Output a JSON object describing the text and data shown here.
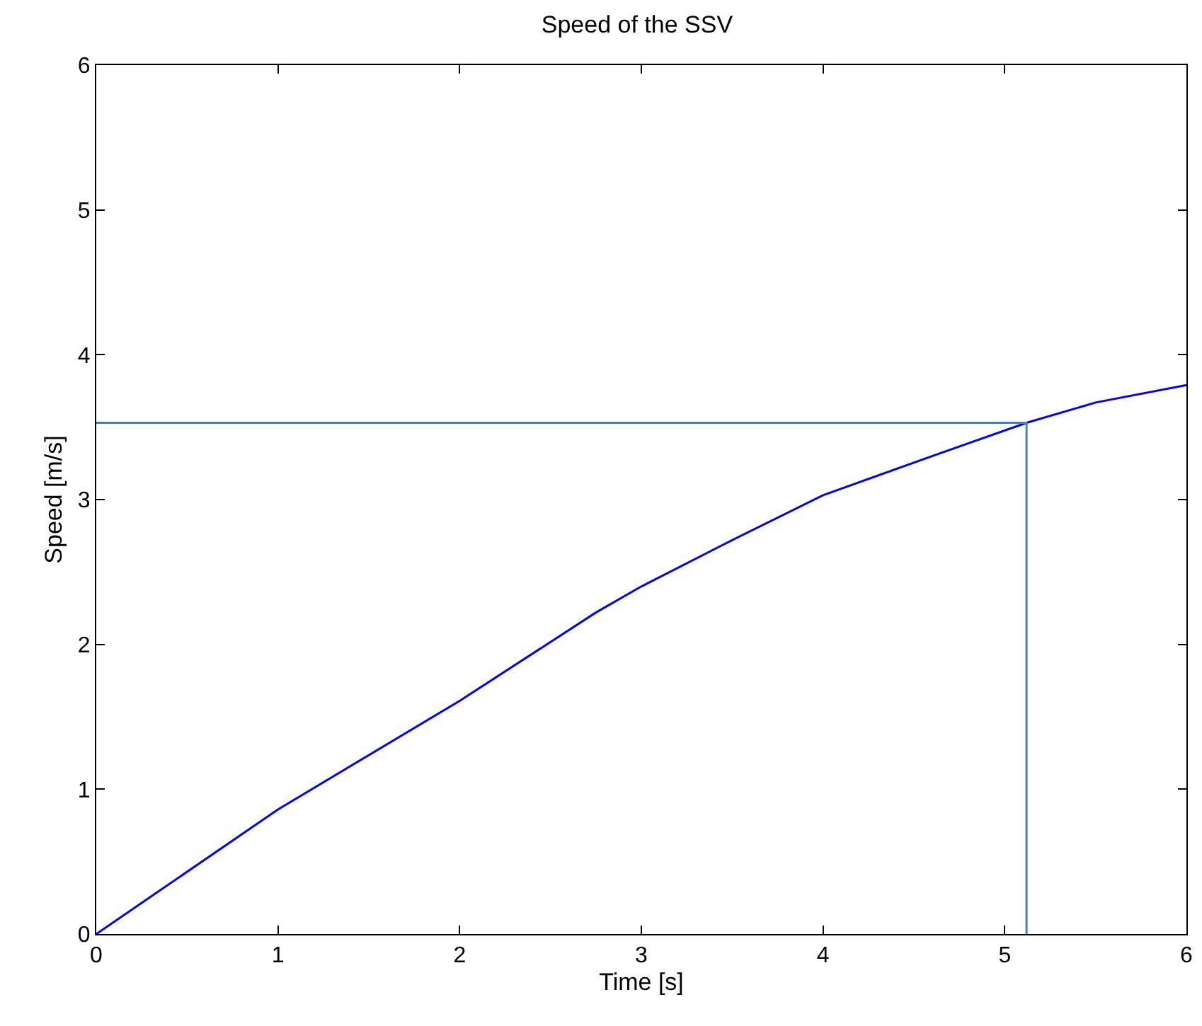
{
  "chart_data": {
    "type": "line",
    "title": "Speed of the SSV",
    "xlabel": "Time [s]",
    "ylabel": "Speed [m/s]",
    "xlim": [
      0,
      6
    ],
    "xticks": [
      0,
      1,
      2,
      3,
      4,
      5,
      6
    ],
    "ylim": [
      0,
      6
    ],
    "yticks": [
      0,
      1,
      2,
      3,
      4,
      5,
      6
    ],
    "marker": "none",
    "line_style": "solid",
    "series": [
      {
        "color": "#0000ff",
        "x": [
          0,
          1,
          2,
          2.75,
          3,
          3.5,
          4,
          4.6,
          5.12,
          5.5,
          6
        ],
        "values": [
          0,
          0.86,
          1.61,
          2.22,
          2.4,
          2.72,
          3.03,
          3.3,
          3.53,
          3.67,
          3.79
        ]
      },
      {
        "color": "#4a7ebb",
        "x": [
          0,
          5.12,
          5.12
        ],
        "values": [
          3.53,
          3.53,
          0
        ]
      }
    ]
  }
}
